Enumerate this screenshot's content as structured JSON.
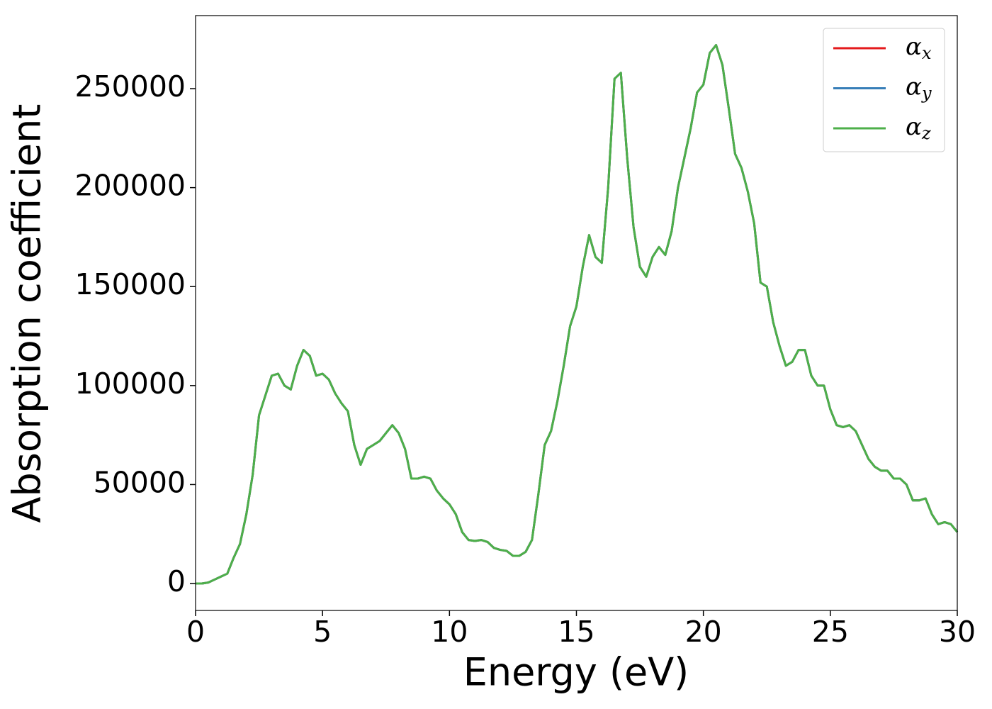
{
  "chart_data": {
    "type": "line",
    "xlabel": "Energy (eV)",
    "ylabel": "Absorption coefficient",
    "x": [
      0,
      0.25,
      0.5,
      0.75,
      1,
      1.25,
      1.5,
      1.75,
      2,
      2.25,
      2.5,
      2.75,
      3,
      3.25,
      3.5,
      3.75,
      4,
      4.25,
      4.5,
      4.75,
      5,
      5.25,
      5.5,
      5.75,
      6,
      6.25,
      6.5,
      6.75,
      7,
      7.25,
      7.5,
      7.75,
      8,
      8.25,
      8.5,
      8.75,
      9,
      9.25,
      9.5,
      9.75,
      10,
      10.25,
      10.5,
      10.75,
      11,
      11.25,
      11.5,
      11.75,
      12,
      12.25,
      12.5,
      12.75,
      13,
      13.25,
      13.5,
      13.75,
      14,
      14.25,
      14.5,
      14.75,
      15,
      15.25,
      15.5,
      15.75,
      16,
      16.25,
      16.5,
      16.75,
      17,
      17.25,
      17.5,
      17.75,
      18,
      18.25,
      18.5,
      18.75,
      19,
      19.25,
      19.5,
      19.75,
      20,
      20.25,
      20.5,
      20.75,
      21,
      21.25,
      21.5,
      21.75,
      22,
      22.25,
      22.5,
      22.75,
      23,
      23.25,
      23.5,
      23.75,
      24,
      24.25,
      24.5,
      24.75,
      25,
      25.25,
      25.5,
      25.75,
      26,
      26.25,
      26.5,
      26.75,
      27,
      27.25,
      27.5,
      27.75,
      28,
      28.25,
      28.5,
      28.75,
      29,
      29.25,
      29.5,
      29.75,
      30
    ],
    "series": [
      {
        "name": "αx",
        "color": "#e41a1c",
        "values": [
          0,
          0,
          500,
          2000,
          3500,
          5000,
          13000,
          20000,
          35000,
          55000,
          85000,
          95000,
          105000,
          106000,
          100000,
          98000,
          110000,
          118000,
          115000,
          105000,
          106000,
          103000,
          96000,
          91000,
          87000,
          70000,
          60000,
          68000,
          70000,
          72000,
          76000,
          80000,
          76000,
          68000,
          53000,
          53000,
          54000,
          53000,
          47000,
          43000,
          40000,
          35000,
          26000,
          22000,
          21500,
          22000,
          21000,
          18000,
          17000,
          16500,
          14000,
          14000,
          16000,
          22000,
          45000,
          70000,
          77000,
          92000,
          110000,
          130000,
          140000,
          160000,
          176000,
          165000,
          162000,
          200000,
          255000,
          258000,
          215000,
          180000,
          160000,
          155000,
          165000,
          170000,
          166000,
          178000,
          200000,
          215000,
          230000,
          248000,
          252000,
          268000,
          272000,
          262000,
          240000,
          217000,
          210000,
          198000,
          182000,
          152000,
          150000,
          132000,
          120000,
          110000,
          112000,
          118000,
          118000,
          105000,
          100000,
          100000,
          88000,
          80000,
          79000,
          80000,
          77000,
          70000,
          63000,
          59000,
          57000,
          57000,
          53000,
          53000,
          50000,
          42000,
          42000,
          43000,
          35000,
          30000,
          31000,
          30000,
          26000
        ]
      },
      {
        "name": "αy",
        "color": "#377eb8",
        "values": [
          0,
          0,
          500,
          2000,
          3500,
          5000,
          13000,
          20000,
          35000,
          55000,
          85000,
          95000,
          105000,
          106000,
          100000,
          98000,
          110000,
          118000,
          115000,
          105000,
          106000,
          103000,
          96000,
          91000,
          87000,
          70000,
          60000,
          68000,
          70000,
          72000,
          76000,
          80000,
          76000,
          68000,
          53000,
          53000,
          54000,
          53000,
          47000,
          43000,
          40000,
          35000,
          26000,
          22000,
          21500,
          22000,
          21000,
          18000,
          17000,
          16500,
          14000,
          14000,
          16000,
          22000,
          45000,
          70000,
          77000,
          92000,
          110000,
          130000,
          140000,
          160000,
          176000,
          165000,
          162000,
          200000,
          255000,
          258000,
          215000,
          180000,
          160000,
          155000,
          165000,
          170000,
          166000,
          178000,
          200000,
          215000,
          230000,
          248000,
          252000,
          268000,
          272000,
          262000,
          240000,
          217000,
          210000,
          198000,
          182000,
          152000,
          150000,
          132000,
          120000,
          110000,
          112000,
          118000,
          118000,
          105000,
          100000,
          100000,
          88000,
          80000,
          79000,
          80000,
          77000,
          70000,
          63000,
          59000,
          57000,
          57000,
          53000,
          53000,
          50000,
          42000,
          42000,
          43000,
          35000,
          30000,
          31000,
          30000,
          26000
        ]
      },
      {
        "name": "αz",
        "color": "#4daf4a",
        "values": [
          0,
          0,
          500,
          2000,
          3500,
          5000,
          13000,
          20000,
          35000,
          55000,
          85000,
          95000,
          105000,
          106000,
          100000,
          98000,
          110000,
          118000,
          115000,
          105000,
          106000,
          103000,
          96000,
          91000,
          87000,
          70000,
          60000,
          68000,
          70000,
          72000,
          76000,
          80000,
          76000,
          68000,
          53000,
          53000,
          54000,
          53000,
          47000,
          43000,
          40000,
          35000,
          26000,
          22000,
          21500,
          22000,
          21000,
          18000,
          17000,
          16500,
          14000,
          14000,
          16000,
          22000,
          45000,
          70000,
          77000,
          92000,
          110000,
          130000,
          140000,
          160000,
          176000,
          165000,
          162000,
          200000,
          255000,
          258000,
          215000,
          180000,
          160000,
          155000,
          165000,
          170000,
          166000,
          178000,
          200000,
          215000,
          230000,
          248000,
          252000,
          268000,
          272000,
          262000,
          240000,
          217000,
          210000,
          198000,
          182000,
          152000,
          150000,
          132000,
          120000,
          110000,
          112000,
          118000,
          118000,
          105000,
          100000,
          100000,
          88000,
          80000,
          79000,
          80000,
          77000,
          70000,
          63000,
          59000,
          57000,
          57000,
          53000,
          53000,
          50000,
          42000,
          42000,
          43000,
          35000,
          30000,
          31000,
          30000,
          26000
        ]
      }
    ],
    "xlim": [
      0,
      30
    ],
    "xticks": [
      0,
      5,
      10,
      15,
      20,
      25,
      30
    ],
    "ylim": [
      -13600,
      286900
    ],
    "yticks": [
      0,
      50000,
      100000,
      150000,
      200000,
      250000
    ],
    "legend": "upper right",
    "grid": false
  }
}
